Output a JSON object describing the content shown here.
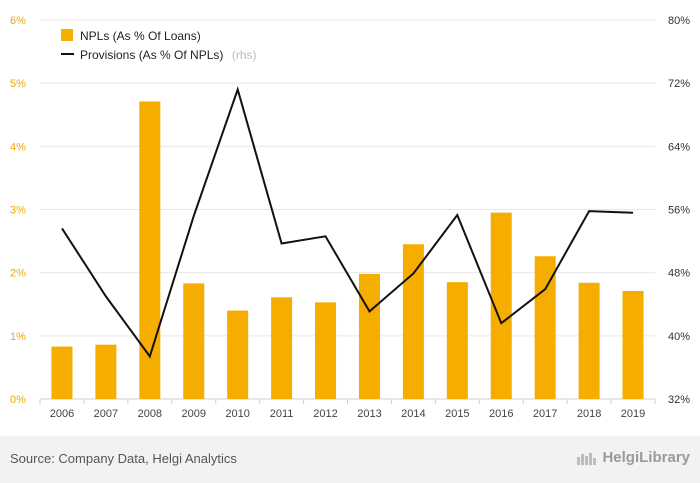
{
  "chart_data": {
    "type": "bar",
    "categories": [
      "2006",
      "2007",
      "2008",
      "2009",
      "2010",
      "2011",
      "2012",
      "2013",
      "2014",
      "2015",
      "2016",
      "2017",
      "2018",
      "2019"
    ],
    "series": [
      {
        "name": "NPLs (As % Of Loans)",
        "type": "bar",
        "axis": "left",
        "values": [
          0.83,
          0.86,
          4.71,
          1.83,
          1.4,
          1.61,
          1.53,
          1.98,
          2.45,
          1.85,
          2.95,
          2.26,
          1.84,
          1.71
        ]
      },
      {
        "name": "Provisions (As % Of NPLs)",
        "type": "line",
        "axis": "right",
        "values": [
          53.6,
          45.0,
          37.4,
          55.2,
          71.2,
          51.7,
          52.6,
          43.1,
          47.9,
          55.3,
          41.6,
          45.9,
          55.8,
          55.6
        ]
      }
    ],
    "legend_suffix": "(rhs)",
    "y_left": {
      "ticks": [
        "0%",
        "1%",
        "2%",
        "3%",
        "4%",
        "5%",
        "6%"
      ],
      "min": 0,
      "max": 6
    },
    "y_right": {
      "ticks": [
        "32%",
        "40%",
        "48%",
        "56%",
        "64%",
        "72%",
        "80%"
      ],
      "min": 32,
      "max": 80
    },
    "legend_position": "top-left",
    "grid": true,
    "colors": {
      "bar": "#f5ad00",
      "line": "#111111",
      "grid": "#e8e8e8",
      "left_tick": "#f0a800"
    }
  },
  "footer": {
    "source": "Source: Company Data, Helgi Analytics",
    "brand": "HelgiLibrary"
  }
}
